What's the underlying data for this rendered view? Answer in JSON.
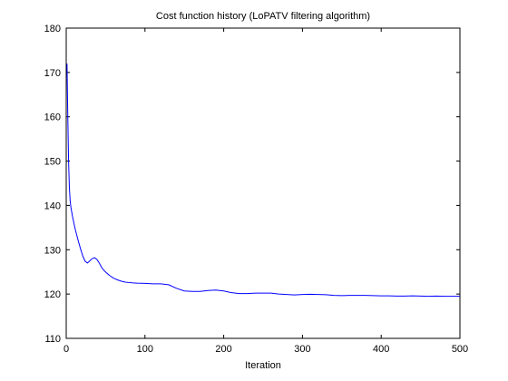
{
  "chart_data": {
    "type": "line",
    "title": "Cost function history (LoPATV filtering algorithm)",
    "xlabel": "Iteration",
    "ylabel": "",
    "xlim": [
      0,
      500
    ],
    "ylim": [
      110,
      180
    ],
    "xticks": [
      0,
      100,
      200,
      300,
      400,
      500
    ],
    "yticks": [
      110,
      120,
      130,
      140,
      150,
      160,
      170,
      180
    ],
    "grid": false,
    "legend": "none",
    "colors": {
      "line": "#0000ff",
      "axes": "#000000",
      "background": "#ffffff"
    },
    "series": [
      {
        "x": [
          1,
          2,
          3,
          4,
          5,
          6,
          8,
          10,
          12,
          15,
          18,
          21,
          24,
          27,
          30,
          33,
          36,
          39,
          42,
          45,
          48,
          51,
          55,
          60,
          65,
          70,
          75,
          80,
          85,
          90,
          100,
          110,
          120,
          130,
          140,
          150,
          160,
          170,
          180,
          190,
          200,
          210,
          220,
          230,
          240,
          250,
          260,
          270,
          280,
          290,
          300,
          310,
          320,
          330,
          340,
          350,
          360,
          370,
          380,
          390,
          400,
          410,
          420,
          430,
          440,
          450,
          460,
          470,
          480,
          490,
          500
        ],
        "y": [
          172,
          160,
          150,
          144,
          141,
          139.5,
          137.5,
          135.8,
          134.2,
          132.2,
          130.3,
          128.6,
          127.4,
          127.0,
          127.5,
          128.0,
          128.2,
          127.8,
          127.0,
          126.0,
          125.3,
          124.8,
          124.2,
          123.6,
          123.2,
          122.9,
          122.7,
          122.6,
          122.5,
          122.45,
          122.4,
          122.3,
          122.3,
          122.1,
          121.3,
          120.7,
          120.6,
          120.6,
          120.8,
          120.9,
          120.7,
          120.3,
          120.1,
          120.1,
          120.2,
          120.2,
          120.2,
          120.0,
          119.9,
          119.8,
          119.9,
          119.95,
          119.9,
          119.85,
          119.7,
          119.65,
          119.7,
          119.7,
          119.7,
          119.65,
          119.6,
          119.6,
          119.55,
          119.55,
          119.6,
          119.55,
          119.5,
          119.55,
          119.5,
          119.5,
          119.5
        ]
      }
    ]
  }
}
